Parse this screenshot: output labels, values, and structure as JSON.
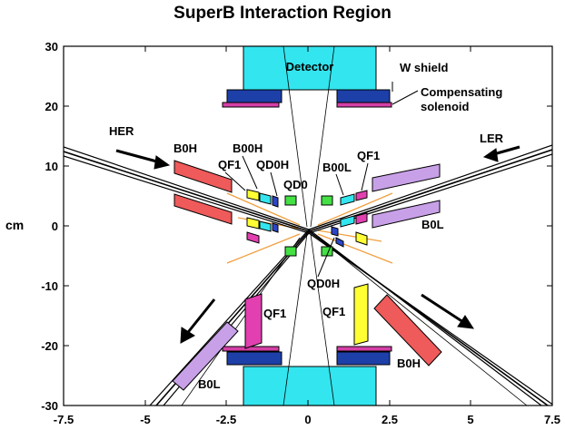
{
  "title": "SuperB Interaction Region",
  "y_axis_label": "cm",
  "x_ticks": [
    "-7.5",
    "-5",
    "-2.5",
    "0",
    "2.5",
    "5",
    "7.5"
  ],
  "y_ticks": [
    "30",
    "20",
    "10",
    "0",
    "-10",
    "-20",
    "-30"
  ],
  "labels": {
    "detector": "Detector",
    "w_shield": "W shield",
    "comp1": "Compensating",
    "comp2": "solenoid",
    "her": "HER",
    "ler": "LER",
    "b0h_top": "B0H",
    "b00h": "B00H",
    "qf1_tl": "QF1",
    "qd0h_top": "QD0H",
    "qd0": "QD0",
    "b00l": "B00L",
    "qf1_tr": "QF1",
    "b0l_right": "B0L",
    "qd0h_bot": "QD0H",
    "qf1_bl": "QF1",
    "qf1_br": "QF1",
    "b0l_bot": "B0L",
    "b0h_bot": "B0H"
  },
  "colors": {
    "detector": "#33e5ee",
    "shield": "#1d3fa8",
    "solenoid": "#d43fa6",
    "b0h": "#ef5a5a",
    "b0l": "#c8a0e8",
    "qf1": "#ffff33",
    "qf1_pink": "#e23fb0",
    "qd0": "#44e044",
    "qd0h": "#2d46c8",
    "beam_orange": "#f0a040"
  }
}
